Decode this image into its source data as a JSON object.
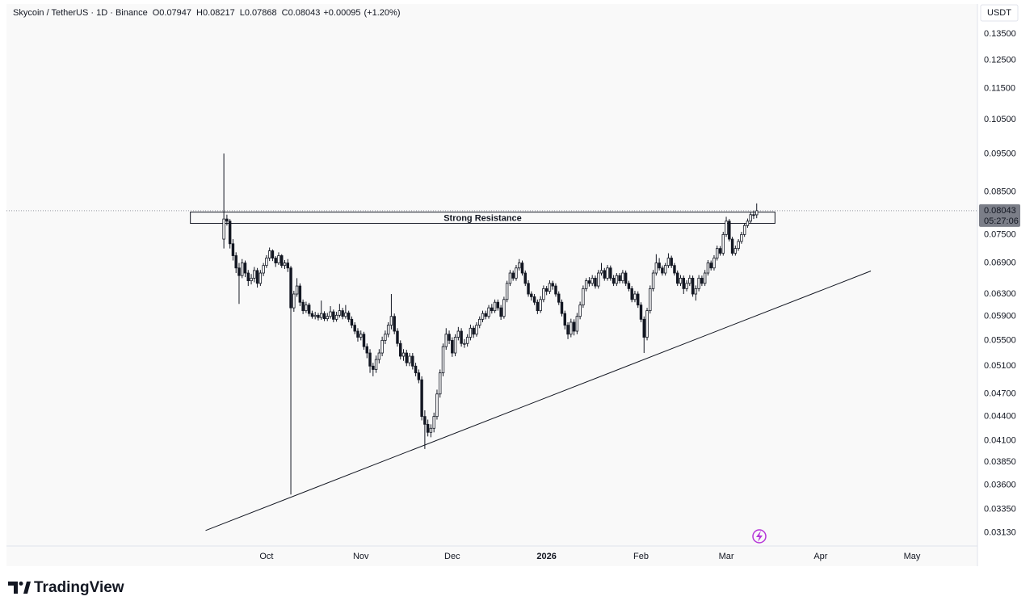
{
  "chart_data": {
    "type": "candlestick",
    "symbol": "Skycoin / TetherUS · 1D · Binance",
    "ohlc_prefixes": [
      "O",
      "H",
      "L",
      "C"
    ],
    "change_label": "+0.00095",
    "change_pct_label": "(+1.20%)",
    "currency": "USDT",
    "countdown": "05:27:06",
    "brand": "TradingView",
    "up_color": "#ffffff",
    "down_color": "#131722",
    "line_color": "#131722",
    "log": true,
    "grid": false,
    "xlim": [
      -71.4,
      247.5
    ],
    "ylim": [
      0.0301,
      0.1474
    ],
    "xticks": [
      {
        "value": 14,
        "label": "Oct"
      },
      {
        "value": 45,
        "label": "Nov"
      },
      {
        "value": 75,
        "label": "Dec"
      },
      {
        "value": 106,
        "label": "2026"
      },
      {
        "value": 137,
        "label": "Feb"
      },
      {
        "value": 165,
        "label": "Mar"
      },
      {
        "value": 196,
        "label": "Apr"
      },
      {
        "value": 226,
        "label": "May"
      }
    ],
    "yticks": [
      {
        "value": 0.135,
        "label": "0.13500"
      },
      {
        "value": 0.125,
        "label": "0.12500"
      },
      {
        "value": 0.115,
        "label": "0.11500"
      },
      {
        "value": 0.105,
        "label": "0.10500"
      },
      {
        "value": 0.095,
        "label": "0.09500"
      },
      {
        "value": 0.085,
        "label": "0.08500"
      },
      {
        "value": 0.075,
        "label": "0.07500"
      },
      {
        "value": 0.069,
        "label": "0.06900"
      },
      {
        "value": 0.063,
        "label": "0.06300"
      },
      {
        "value": 0.059,
        "label": "0.05900"
      },
      {
        "value": 0.055,
        "label": "0.05500"
      },
      {
        "value": 0.051,
        "label": "0.05100"
      },
      {
        "value": 0.047,
        "label": "0.04700"
      },
      {
        "value": 0.044,
        "label": "0.04400"
      },
      {
        "value": 0.041,
        "label": "0.04100"
      },
      {
        "value": 0.0385,
        "label": "0.03850"
      },
      {
        "value": 0.036,
        "label": "0.03600"
      },
      {
        "value": 0.0335,
        "label": "0.03350"
      },
      {
        "value": 0.0313,
        "label": "0.03130"
      }
    ],
    "annotations": [
      {
        "type": "box",
        "label": "Strong Resistance",
        "x": [
          -11,
          181
        ],
        "y": [
          0.0775,
          0.0801
        ]
      },
      {
        "type": "trendline",
        "x": [
          -6,
          212.5
        ],
        "y": [
          0.0315,
          0.0674
        ]
      }
    ],
    "candles": [
      [
        0.074,
        0.0951,
        0.072,
        0.0785
      ],
      [
        0.0785,
        0.0795,
        0.077,
        0.078
      ],
      [
        0.078,
        0.0785,
        0.072,
        0.073
      ],
      [
        0.073,
        0.074,
        0.0695,
        0.0705
      ],
      [
        0.0705,
        0.0712,
        0.067,
        0.068
      ],
      [
        0.068,
        0.069,
        0.0612,
        0.0665
      ],
      [
        0.0665,
        0.0698,
        0.066,
        0.069
      ],
      [
        0.069,
        0.0695,
        0.0662,
        0.067
      ],
      [
        0.067,
        0.0676,
        0.0645,
        0.0655
      ],
      [
        0.0655,
        0.0668,
        0.0648,
        0.066
      ],
      [
        0.066,
        0.0682,
        0.0652,
        0.0675
      ],
      [
        0.0675,
        0.068,
        0.0642,
        0.065
      ],
      [
        0.065,
        0.0676,
        0.0645,
        0.067
      ],
      [
        0.067,
        0.069,
        0.0664,
        0.0685
      ],
      [
        0.0685,
        0.0706,
        0.068,
        0.07
      ],
      [
        0.07,
        0.0722,
        0.0694,
        0.0715
      ],
      [
        0.0715,
        0.0718,
        0.0694,
        0.07
      ],
      [
        0.07,
        0.0704,
        0.0682,
        0.069
      ],
      [
        0.069,
        0.0712,
        0.0686,
        0.0705
      ],
      [
        0.0705,
        0.0708,
        0.068,
        0.0685
      ],
      [
        0.0685,
        0.0696,
        0.0678,
        0.069
      ],
      [
        0.069,
        0.0698,
        0.0672,
        0.068
      ],
      [
        0.068,
        0.0684,
        0.035,
        0.0605
      ],
      [
        0.0605,
        0.0636,
        0.0598,
        0.063
      ],
      [
        0.063,
        0.066,
        0.0625,
        0.0645
      ],
      [
        0.0645,
        0.065,
        0.0608,
        0.0615
      ],
      [
        0.0615,
        0.062,
        0.0594,
        0.06
      ],
      [
        0.06,
        0.0616,
        0.0596,
        0.061
      ],
      [
        0.061,
        0.0614,
        0.059,
        0.0595
      ],
      [
        0.0595,
        0.06,
        0.0586,
        0.059
      ],
      [
        0.059,
        0.0598,
        0.0585,
        0.0592
      ],
      [
        0.0592,
        0.0596,
        0.0583,
        0.0588
      ],
      [
        0.0588,
        0.0618,
        0.0584,
        0.0595
      ],
      [
        0.0595,
        0.0599,
        0.0582,
        0.0586
      ],
      [
        0.0586,
        0.0596,
        0.0582,
        0.059
      ],
      [
        0.059,
        0.0608,
        0.0586,
        0.0598
      ],
      [
        0.0598,
        0.0602,
        0.058,
        0.0585
      ],
      [
        0.0585,
        0.0598,
        0.0581,
        0.0592
      ],
      [
        0.0592,
        0.0612,
        0.0588,
        0.06
      ],
      [
        0.06,
        0.0605,
        0.0585,
        0.059
      ],
      [
        0.059,
        0.061,
        0.0586,
        0.0596
      ],
      [
        0.0596,
        0.06,
        0.058,
        0.0585
      ],
      [
        0.0585,
        0.059,
        0.057,
        0.0575
      ],
      [
        0.0575,
        0.058,
        0.056,
        0.0565
      ],
      [
        0.0565,
        0.057,
        0.0548,
        0.0555
      ],
      [
        0.0555,
        0.0566,
        0.055,
        0.056
      ],
      [
        0.056,
        0.0564,
        0.0535,
        0.054
      ],
      [
        0.054,
        0.0545,
        0.0522,
        0.053
      ],
      [
        0.053,
        0.0536,
        0.05,
        0.051
      ],
      [
        0.051,
        0.0515,
        0.0495,
        0.0505
      ],
      [
        0.0505,
        0.0526,
        0.05,
        0.052
      ],
      [
        0.052,
        0.0536,
        0.0514,
        0.053
      ],
      [
        0.053,
        0.0556,
        0.0525,
        0.055
      ],
      [
        0.055,
        0.0566,
        0.0544,
        0.056
      ],
      [
        0.056,
        0.058,
        0.0555,
        0.0575
      ],
      [
        0.0575,
        0.063,
        0.0568,
        0.059
      ],
      [
        0.059,
        0.0595,
        0.056,
        0.0565
      ],
      [
        0.0565,
        0.057,
        0.054,
        0.0545
      ],
      [
        0.0545,
        0.055,
        0.052,
        0.0525
      ],
      [
        0.0525,
        0.0536,
        0.0518,
        0.053
      ],
      [
        0.053,
        0.0535,
        0.051,
        0.0515
      ],
      [
        0.0515,
        0.053,
        0.051,
        0.0525
      ],
      [
        0.0525,
        0.053,
        0.0505,
        0.051
      ],
      [
        0.051,
        0.0515,
        0.0495,
        0.05
      ],
      [
        0.05,
        0.0505,
        0.0485,
        0.049
      ],
      [
        0.049,
        0.0495,
        0.0435,
        0.044
      ],
      [
        0.044,
        0.0448,
        0.04,
        0.043
      ],
      [
        0.043,
        0.0436,
        0.0415,
        0.042
      ],
      [
        0.042,
        0.043,
        0.0414,
        0.0425
      ],
      [
        0.0425,
        0.0445,
        0.042,
        0.044
      ],
      [
        0.044,
        0.0476,
        0.0436,
        0.047
      ],
      [
        0.047,
        0.0505,
        0.0465,
        0.05
      ],
      [
        0.05,
        0.0545,
        0.0495,
        0.054
      ],
      [
        0.054,
        0.057,
        0.0535,
        0.056
      ],
      [
        0.056,
        0.0566,
        0.0544,
        0.055
      ],
      [
        0.055,
        0.0555,
        0.0524,
        0.053
      ],
      [
        0.053,
        0.056,
        0.0525,
        0.0555
      ],
      [
        0.0555,
        0.0572,
        0.055,
        0.0565
      ],
      [
        0.0565,
        0.057,
        0.054,
        0.0545
      ],
      [
        0.0545,
        0.0552,
        0.0538,
        0.0545
      ],
      [
        0.0545,
        0.056,
        0.054,
        0.0555
      ],
      [
        0.0555,
        0.0576,
        0.055,
        0.057
      ],
      [
        0.057,
        0.0574,
        0.0554,
        0.056
      ],
      [
        0.056,
        0.058,
        0.0556,
        0.0575
      ],
      [
        0.0575,
        0.059,
        0.057,
        0.0585
      ],
      [
        0.0585,
        0.06,
        0.058,
        0.0595
      ],
      [
        0.0595,
        0.06,
        0.0585,
        0.059
      ],
      [
        0.059,
        0.061,
        0.0586,
        0.0605
      ],
      [
        0.0605,
        0.0612,
        0.0595,
        0.06
      ],
      [
        0.06,
        0.062,
        0.0596,
        0.0615
      ],
      [
        0.0615,
        0.062,
        0.06,
        0.0605
      ],
      [
        0.0605,
        0.061,
        0.0584,
        0.059
      ],
      [
        0.059,
        0.0625,
        0.0586,
        0.062
      ],
      [
        0.062,
        0.0655,
        0.0615,
        0.065
      ],
      [
        0.065,
        0.0676,
        0.0645,
        0.067
      ],
      [
        0.067,
        0.0675,
        0.0655,
        0.066
      ],
      [
        0.066,
        0.0686,
        0.0655,
        0.068
      ],
      [
        0.068,
        0.0698,
        0.0675,
        0.069
      ],
      [
        0.069,
        0.0695,
        0.0665,
        0.067
      ],
      [
        0.067,
        0.0675,
        0.0645,
        0.065
      ],
      [
        0.065,
        0.0656,
        0.0625,
        0.063
      ],
      [
        0.063,
        0.0635,
        0.0618,
        0.0625
      ],
      [
        0.0625,
        0.063,
        0.061,
        0.0615
      ],
      [
        0.0615,
        0.062,
        0.0594,
        0.06
      ],
      [
        0.06,
        0.0626,
        0.0596,
        0.062
      ],
      [
        0.062,
        0.0646,
        0.0615,
        0.064
      ],
      [
        0.064,
        0.0645,
        0.0628,
        0.0635
      ],
      [
        0.0635,
        0.0656,
        0.063,
        0.065
      ],
      [
        0.065,
        0.0655,
        0.0638,
        0.0645
      ],
      [
        0.0645,
        0.065,
        0.0625,
        0.063
      ],
      [
        0.063,
        0.0635,
        0.061,
        0.0615
      ],
      [
        0.0615,
        0.062,
        0.059,
        0.0595
      ],
      [
        0.0595,
        0.06,
        0.0568,
        0.0575
      ],
      [
        0.0575,
        0.058,
        0.0552,
        0.056
      ],
      [
        0.056,
        0.0586,
        0.0555,
        0.058
      ],
      [
        0.058,
        0.0585,
        0.0558,
        0.0565
      ],
      [
        0.0565,
        0.0596,
        0.056,
        0.059
      ],
      [
        0.059,
        0.0616,
        0.0585,
        0.061
      ],
      [
        0.061,
        0.0646,
        0.0605,
        0.064
      ],
      [
        0.064,
        0.066,
        0.0635,
        0.0655
      ],
      [
        0.0655,
        0.0662,
        0.0644,
        0.065
      ],
      [
        0.065,
        0.0666,
        0.0645,
        0.066
      ],
      [
        0.066,
        0.0665,
        0.064,
        0.0645
      ],
      [
        0.0645,
        0.0676,
        0.064,
        0.067
      ],
      [
        0.067,
        0.069,
        0.0665,
        0.0675
      ],
      [
        0.0675,
        0.068,
        0.0655,
        0.066
      ],
      [
        0.066,
        0.0686,
        0.0655,
        0.068
      ],
      [
        0.068,
        0.0685,
        0.0655,
        0.066
      ],
      [
        0.066,
        0.0666,
        0.0645,
        0.065
      ],
      [
        0.065,
        0.067,
        0.0645,
        0.0665
      ],
      [
        0.0665,
        0.067,
        0.065,
        0.0655
      ],
      [
        0.0655,
        0.0676,
        0.065,
        0.067
      ],
      [
        0.067,
        0.0675,
        0.0645,
        0.065
      ],
      [
        0.065,
        0.0655,
        0.0635,
        0.064
      ],
      [
        0.064,
        0.0645,
        0.0615,
        0.062
      ],
      [
        0.062,
        0.0636,
        0.0615,
        0.063
      ],
      [
        0.063,
        0.0635,
        0.0605,
        0.061
      ],
      [
        0.061,
        0.0615,
        0.058,
        0.0585
      ],
      [
        0.0585,
        0.059,
        0.053,
        0.0555
      ],
      [
        0.0555,
        0.0605,
        0.055,
        0.06
      ],
      [
        0.06,
        0.0646,
        0.0595,
        0.064
      ],
      [
        0.064,
        0.0676,
        0.0635,
        0.067
      ],
      [
        0.067,
        0.0708,
        0.0665,
        0.069
      ],
      [
        0.069,
        0.07,
        0.0675,
        0.068
      ],
      [
        0.068,
        0.0685,
        0.0665,
        0.067
      ],
      [
        0.067,
        0.069,
        0.0665,
        0.0685
      ],
      [
        0.0685,
        0.071,
        0.068,
        0.07
      ],
      [
        0.07,
        0.0705,
        0.068,
        0.0685
      ],
      [
        0.0685,
        0.069,
        0.0665,
        0.067
      ],
      [
        0.067,
        0.0675,
        0.0645,
        0.065
      ],
      [
        0.065,
        0.0666,
        0.0645,
        0.066
      ],
      [
        0.066,
        0.0665,
        0.063,
        0.064
      ],
      [
        0.064,
        0.0656,
        0.0635,
        0.065
      ],
      [
        0.065,
        0.0666,
        0.0645,
        0.066
      ],
      [
        0.066,
        0.0665,
        0.0625,
        0.063
      ],
      [
        0.063,
        0.0646,
        0.0618,
        0.064
      ],
      [
        0.064,
        0.0666,
        0.0635,
        0.066
      ],
      [
        0.066,
        0.0665,
        0.0645,
        0.065
      ],
      [
        0.065,
        0.0676,
        0.0645,
        0.067
      ],
      [
        0.067,
        0.0696,
        0.0665,
        0.069
      ],
      [
        0.069,
        0.0695,
        0.0675,
        0.068
      ],
      [
        0.068,
        0.0706,
        0.0675,
        0.07
      ],
      [
        0.07,
        0.0726,
        0.0695,
        0.072
      ],
      [
        0.072,
        0.0725,
        0.0705,
        0.071
      ],
      [
        0.071,
        0.0756,
        0.0705,
        0.075
      ],
      [
        0.075,
        0.079,
        0.0745,
        0.078
      ],
      [
        0.078,
        0.0785,
        0.0735,
        0.074
      ],
      [
        0.074,
        0.0745,
        0.0705,
        0.071
      ],
      [
        0.071,
        0.0726,
        0.0705,
        0.072
      ],
      [
        0.072,
        0.074,
        0.0715,
        0.0735
      ],
      [
        0.0735,
        0.0756,
        0.073,
        0.075
      ],
      [
        0.075,
        0.0776,
        0.0745,
        0.077
      ],
      [
        0.077,
        0.0786,
        0.0765,
        0.078
      ],
      [
        0.078,
        0.08,
        0.0775,
        0.0795
      ],
      [
        0.0795,
        0.0805,
        0.0785,
        0.07947
      ],
      [
        0.07947,
        0.08217,
        0.07868,
        0.08043
      ]
    ]
  }
}
